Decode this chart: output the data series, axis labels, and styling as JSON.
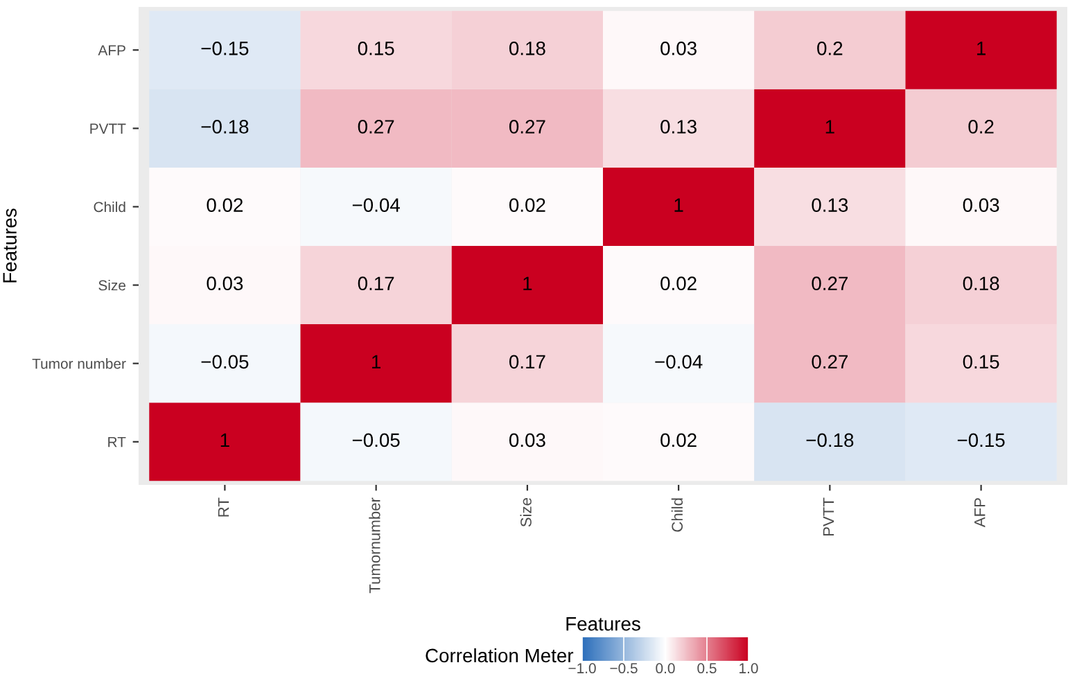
{
  "chart_data": {
    "type": "heatmap",
    "xlabel": "Features",
    "ylabel": "Features",
    "clabel": "Correlation Meter",
    "categories": [
      "RT",
      "Tumornumber",
      "Size",
      "Child",
      "PVTT",
      "AFP"
    ],
    "y_categories": [
      "AFP",
      "PVTT",
      "Child",
      "Size",
      "Tumor number",
      "RT"
    ],
    "cells": [
      [
        -0.15,
        0.15,
        0.18,
        0.03,
        0.2,
        1
      ],
      [
        -0.18,
        0.27,
        0.27,
        0.13,
        1,
        0.2
      ],
      [
        0.02,
        -0.04,
        0.02,
        1,
        0.13,
        0.03
      ],
      [
        0.03,
        0.17,
        1,
        0.02,
        0.27,
        0.18
      ],
      [
        -0.05,
        1,
        0.17,
        -0.04,
        0.27,
        0.15
      ],
      [
        1,
        -0.05,
        0.03,
        0.02,
        -0.18,
        -0.15
      ]
    ],
    "cell_labels": [
      [
        "−0.15",
        "0.15",
        "0.18",
        "0.03",
        "0.2",
        "1"
      ],
      [
        "−0.18",
        "0.27",
        "0.27",
        "0.13",
        "1",
        "0.2"
      ],
      [
        "0.02",
        "−0.04",
        "0.02",
        "1",
        "0.13",
        "0.03"
      ],
      [
        "0.03",
        "0.17",
        "1",
        "0.02",
        "0.27",
        "0.18"
      ],
      [
        "−0.05",
        "1",
        "0.17",
        "−0.04",
        "0.27",
        "0.15"
      ],
      [
        "1",
        "−0.05",
        "0.03",
        "0.02",
        "−0.18",
        "−0.15"
      ]
    ],
    "clim": [
      -1,
      1
    ],
    "cticks": [
      {
        "value": -1,
        "label": "−1.0"
      },
      {
        "value": -0.5,
        "label": "−0.5"
      },
      {
        "value": 0,
        "label": "0.0"
      },
      {
        "value": 0.5,
        "label": "0.5"
      },
      {
        "value": 1,
        "label": "1.0"
      }
    ],
    "colors": [
      "#2c6fbb",
      "#ffffff",
      "#ca0020"
    ],
    "grid": false
  }
}
